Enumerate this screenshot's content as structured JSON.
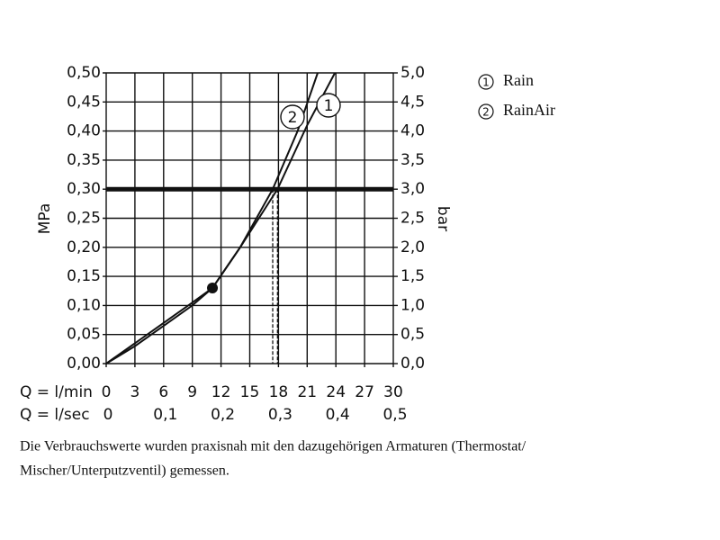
{
  "chart_data": {
    "type": "line",
    "ylabel": "MPa",
    "y2label": "bar",
    "xlabel": "Q = l/min",
    "x2label": "Q = l/sec",
    "xlim": [
      0,
      30
    ],
    "xticks": [
      0,
      3,
      6,
      9,
      12,
      15,
      18,
      21,
      24,
      27,
      30
    ],
    "x2lim": [
      0,
      0.5
    ],
    "x2ticks": [
      0,
      {
        "value": 0.1,
        "label": "0,1"
      },
      {
        "value": 0.2,
        "label": "0,2"
      },
      {
        "value": 0.3,
        "label": "0,3"
      },
      {
        "value": 0.4,
        "label": "0,4"
      },
      {
        "value": 0.5,
        "label": "0,5"
      }
    ],
    "ylim": [
      0,
      0.5
    ],
    "yticks": [
      {
        "value": 0,
        "label": "0,00"
      },
      {
        "value": 0.05,
        "label": "0,05"
      },
      {
        "value": 0.1,
        "label": "0,10"
      },
      {
        "value": 0.15,
        "label": "0,15"
      },
      {
        "value": 0.2,
        "label": "0,20"
      },
      {
        "value": 0.25,
        "label": "0,25"
      },
      {
        "value": 0.3,
        "label": "0,30"
      },
      {
        "value": 0.35,
        "label": "0,35"
      },
      {
        "value": 0.4,
        "label": "0,40"
      },
      {
        "value": 0.45,
        "label": "0,45"
      },
      {
        "value": 0.5,
        "label": "0,50"
      }
    ],
    "y2lim": [
      0,
      5
    ],
    "y2ticks": [
      {
        "value": 0,
        "label": "0,0"
      },
      {
        "value": 0.5,
        "label": "0,5"
      },
      {
        "value": 1,
        "label": "1,0"
      },
      {
        "value": 1.5,
        "label": "1,5"
      },
      {
        "value": 2,
        "label": "2,0"
      },
      {
        "value": 2.5,
        "label": "2,5"
      },
      {
        "value": 3,
        "label": "3,0"
      },
      {
        "value": 3.5,
        "label": "3,5"
      },
      {
        "value": 4,
        "label": "4,0"
      },
      {
        "value": 4.5,
        "label": "4,5"
      },
      {
        "value": 5,
        "label": "5,0"
      }
    ],
    "grid": true,
    "reference_line": 0.3,
    "marker_point": {
      "x": 11.1,
      "y": 0.13
    },
    "series": [
      {
        "name": "Rain",
        "label": "1",
        "color": "#111111",
        "x": [
          0,
          3,
          6,
          9,
          11.1,
          14,
          17.9,
          21,
          23.9
        ],
        "values": [
          0,
          0.03,
          0.065,
          0.1,
          0.13,
          0.2,
          0.3,
          0.41,
          0.5
        ]
      },
      {
        "name": "RainAir",
        "label": "2",
        "color": "#111111",
        "x": [
          0,
          3,
          6,
          9,
          11.1,
          14,
          17.4,
          20,
          22.1
        ],
        "values": [
          0,
          0.035,
          0.07,
          0.105,
          0.13,
          0.2,
          0.3,
          0.4,
          0.5
        ]
      }
    ],
    "footnote": [
      "Die Verbrauchswerte wurden praxisnah mit den dazugehörigen Armaturen (Thermostat/",
      "Mischer/Unterputzventil) gemessen."
    ]
  }
}
